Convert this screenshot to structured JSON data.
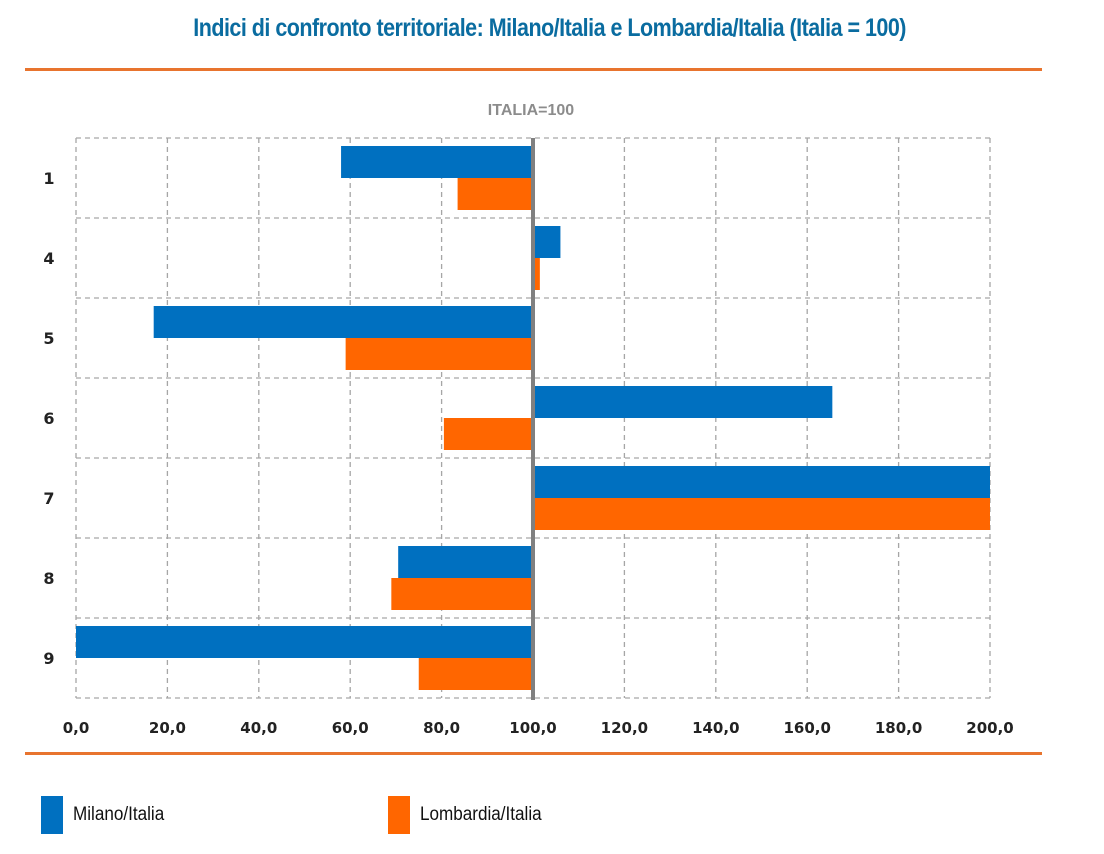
{
  "header": {
    "title": "Indici di confronto territoriale: Milano/Italia e Lombardia/Italia (Italia = 100)"
  },
  "colors": {
    "title": "#0a6ca0",
    "rule": "#e8742e",
    "milano": "#0070c0",
    "lombardia": "#ff6600",
    "baseline": "#808080",
    "grid": "#a6a6a6"
  },
  "chart_data": {
    "type": "bar",
    "orientation": "horizontal",
    "title": "ITALIA=100",
    "xlabel": "",
    "ylabel": "",
    "baseline": 100,
    "xlim": [
      0,
      200
    ],
    "grid": true,
    "categories": [
      "1",
      "4",
      "5",
      "6",
      "7",
      "8",
      "9"
    ],
    "x_ticks": [
      "0,0",
      "20,0",
      "40,0",
      "60,0",
      "80,0",
      "100,0",
      "120,0",
      "140,0",
      "160,0",
      "180,0",
      "200,0"
    ],
    "series": [
      {
        "name": "Milano/Italia",
        "color": "#0070c0",
        "values": [
          58,
          106,
          17,
          165.5,
          200,
          70.5,
          0
        ]
      },
      {
        "name": "Lombardia/Italia",
        "color": "#ff6600",
        "values": [
          83.5,
          101.5,
          59,
          80.5,
          200,
          69,
          75
        ]
      }
    ],
    "legend_position": "bottom-left"
  },
  "legend": {
    "items": [
      {
        "label": "Milano/Italia",
        "color": "#0070c0"
      },
      {
        "label": "Lombardia/Italia",
        "color": "#ff6600"
      }
    ]
  }
}
